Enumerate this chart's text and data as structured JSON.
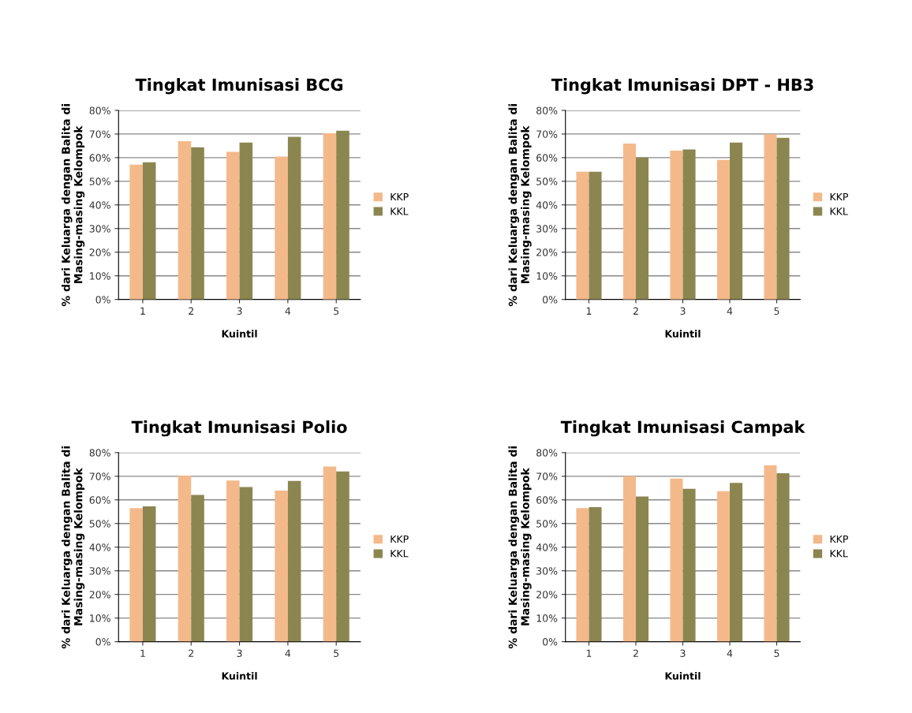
{
  "chart_data": [
    {
      "type": "bar",
      "title": "Tingkat Imunisasi BCG",
      "xlabel": "Kuintil",
      "ylabel": "% dari Keluarga dengan Balita di\nMasing-masing Kelompok",
      "categories": [
        "1",
        "2",
        "3",
        "4",
        "5"
      ],
      "series": [
        {
          "name": "KKP",
          "color": "#f4b98a",
          "values": [
            57,
            67,
            62.5,
            60.5,
            70.3
          ]
        },
        {
          "name": "KKL",
          "color": "#8b8650",
          "values": [
            58,
            64.4,
            66.4,
            68.8,
            71.4
          ]
        }
      ],
      "ylim": [
        0,
        80
      ],
      "yticks": [
        {
          "value": 0,
          "label": "0%"
        },
        {
          "value": 10,
          "label": "10%"
        },
        {
          "value": 20,
          "label": "20%"
        },
        {
          "value": 30,
          "label": "30%"
        },
        {
          "value": 40,
          "label": "40%"
        },
        {
          "value": 50,
          "label": "50%"
        },
        {
          "value": 60,
          "label": "60%"
        },
        {
          "value": 70,
          "label": "70%"
        },
        {
          "value": 80,
          "label": "80%"
        }
      ],
      "grid": "y",
      "legend": "right"
    },
    {
      "type": "bar",
      "title": "Tingkat Imunisasi DPT - HB3",
      "xlabel": "Kuintil",
      "ylabel": "% dari Keluarga dengan Balita di\nMasing-masing Kelompok",
      "categories": [
        "1",
        "2",
        "3",
        "4",
        "5"
      ],
      "series": [
        {
          "name": "KKP",
          "color": "#f4b98a",
          "values": [
            54,
            66,
            63,
            59,
            70
          ]
        },
        {
          "name": "KKL",
          "color": "#8b8650",
          "values": [
            54,
            60,
            63.5,
            66.4,
            68.4
          ]
        }
      ],
      "ylim": [
        0,
        80
      ],
      "yticks": [
        {
          "value": 0,
          "label": "0%"
        },
        {
          "value": 10,
          "label": "10%"
        },
        {
          "value": 20,
          "label": "20%"
        },
        {
          "value": 30,
          "label": "30%"
        },
        {
          "value": 40,
          "label": "40%"
        },
        {
          "value": 50,
          "label": "50%"
        },
        {
          "value": 60,
          "label": "60%"
        },
        {
          "value": 70,
          "label": "70%"
        },
        {
          "value": 80,
          "label": "80%"
        }
      ],
      "grid": "y",
      "legend": "right"
    },
    {
      "type": "bar",
      "title": "Tingkat Imunisasi Polio",
      "xlabel": "Kuintil",
      "ylabel": "% dari Keluarga dengan Balita di\nMasing-masing Kelompok",
      "categories": [
        "1",
        "2",
        "3",
        "4",
        "5"
      ],
      "series": [
        {
          "name": "KKP",
          "color": "#f4b98a",
          "values": [
            56.5,
            70.2,
            68.2,
            63.9,
            74.1
          ]
        },
        {
          "name": "KKL",
          "color": "#8b8650",
          "values": [
            57.3,
            62.1,
            65.4,
            68,
            72
          ]
        }
      ],
      "ylim": [
        0,
        80
      ],
      "yticks": [
        {
          "value": 0,
          "label": "0%"
        },
        {
          "value": 10,
          "label": "10%"
        },
        {
          "value": 20,
          "label": "20%"
        },
        {
          "value": 30,
          "label": "30%"
        },
        {
          "value": 40,
          "label": "40%"
        },
        {
          "value": 50,
          "label": "50%"
        },
        {
          "value": 60,
          "label": "60%"
        },
        {
          "value": 70,
          "label": "70%"
        },
        {
          "value": 80,
          "label": "80%"
        }
      ],
      "grid": "y",
      "legend": "right"
    },
    {
      "type": "bar",
      "title": "Tingkat Imunisasi Campak",
      "xlabel": "Kuintil",
      "ylabel": "% dari Keluarga dengan Balita di\nMasing-masing Kelompok",
      "categories": [
        "1",
        "2",
        "3",
        "4",
        "5"
      ],
      "series": [
        {
          "name": "KKP",
          "color": "#f4b98a",
          "values": [
            56.5,
            70,
            69,
            63.7,
            74.6
          ]
        },
        {
          "name": "KKL",
          "color": "#8b8650",
          "values": [
            56.9,
            61.4,
            64.7,
            67.2,
            71.3
          ]
        }
      ],
      "ylim": [
        0,
        80
      ],
      "yticks": [
        {
          "value": 0,
          "label": "0%"
        },
        {
          "value": 10,
          "label": "10%"
        },
        {
          "value": 20,
          "label": "20%"
        },
        {
          "value": 30,
          "label": "30%"
        },
        {
          "value": 40,
          "label": "40%"
        },
        {
          "value": 50,
          "label": "50%"
        },
        {
          "value": 60,
          "label": "60%"
        },
        {
          "value": 70,
          "label": "70%"
        },
        {
          "value": 80,
          "label": "80%"
        }
      ],
      "grid": "y",
      "legend": "right"
    }
  ]
}
